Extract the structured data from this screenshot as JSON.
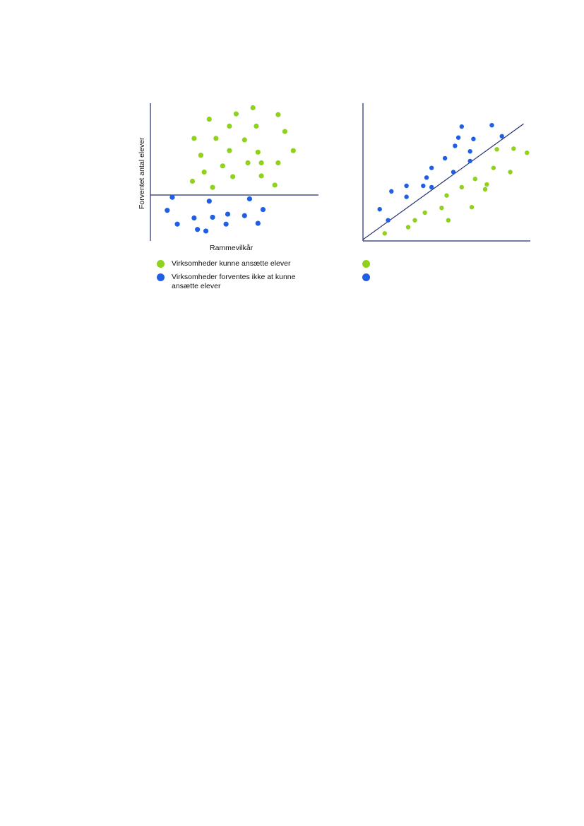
{
  "colors": {
    "green": "#8fd11b",
    "blue": "#1f5fe6",
    "axis": "#1f2d6e"
  },
  "chart_data": [
    {
      "type": "scatter",
      "title": "",
      "xlabel": "Rammevilkår",
      "ylabel": "Forventet antal elever",
      "xlim": [
        0,
        100
      ],
      "ylim": [
        -30,
        60
      ],
      "series": [
        {
          "name": "Virksomheder kunne ansætte elever",
          "color": "green",
          "points": [
            [
              35,
              49.5
            ],
            [
              51,
              53
            ],
            [
              61,
              57
            ],
            [
              76,
              52.5
            ],
            [
              47,
              45
            ],
            [
              63,
              45
            ],
            [
              80,
              41.5
            ],
            [
              26,
              37
            ],
            [
              39,
              37
            ],
            [
              56,
              36
            ],
            [
              47,
              29
            ],
            [
              64,
              28
            ],
            [
              85,
              29
            ],
            [
              30,
              26
            ],
            [
              66,
              21
            ],
            [
              76,
              21
            ],
            [
              43,
              19
            ],
            [
              58,
              21
            ],
            [
              32,
              15
            ],
            [
              49,
              12
            ],
            [
              66,
              12.5
            ],
            [
              25,
              9
            ],
            [
              74,
              6.5
            ],
            [
              37,
              5
            ]
          ]
        },
        {
          "name": "Virksomheder forventes ikke at kunne ansætte elever",
          "color": "blue",
          "points": [
            [
              13,
              -1.5
            ],
            [
              35,
              -4
            ],
            [
              59,
              -2.5
            ],
            [
              10,
              -10
            ],
            [
              67,
              -9.5
            ],
            [
              26,
              -15
            ],
            [
              37,
              -14.5
            ],
            [
              46,
              -12.5
            ],
            [
              56,
              -13.5
            ],
            [
              16,
              -19
            ],
            [
              28,
              -22.5
            ],
            [
              33,
              -23.5
            ],
            [
              45,
              -19
            ],
            [
              64,
              -18.5
            ]
          ]
        }
      ]
    },
    {
      "type": "scatter",
      "title": "",
      "xlabel": "",
      "ylabel": "",
      "xlim": [
        0,
        100
      ],
      "ylim": [
        0,
        100
      ],
      "trend_line": [
        [
          0,
          1
        ],
        [
          96,
          85
        ]
      ],
      "series": [
        {
          "name": "",
          "color": "green",
          "points": [
            [
              13,
              5.5
            ],
            [
              27,
              10
            ],
            [
              31,
              15
            ],
            [
              37,
              20.5
            ],
            [
              47,
              24
            ],
            [
              51,
              15
            ],
            [
              65,
              24.5
            ],
            [
              50,
              33
            ],
            [
              59,
              39
            ],
            [
              67,
              45
            ],
            [
              73,
              37.5
            ],
            [
              74,
              41
            ],
            [
              78,
              53
            ],
            [
              88,
              50
            ],
            [
              98,
              64
            ],
            [
              80,
              66.5
            ],
            [
              90,
              67
            ]
          ]
        },
        {
          "name": "",
          "color": "blue",
          "points": [
            [
              10,
              23
            ],
            [
              15,
              15
            ],
            [
              17,
              36
            ],
            [
              26,
              32
            ],
            [
              26,
              40
            ],
            [
              36,
              40
            ],
            [
              38,
              46
            ],
            [
              41,
              39
            ],
            [
              41,
              53
            ],
            [
              49,
              60
            ],
            [
              54,
              50
            ],
            [
              55,
              69
            ],
            [
              57,
              75
            ],
            [
              59,
              83
            ],
            [
              64,
              58
            ],
            [
              64,
              65
            ],
            [
              66,
              74
            ],
            [
              77,
              84
            ],
            [
              83,
              76
            ]
          ]
        }
      ]
    }
  ],
  "legend": [
    {
      "label": "Virksomheder kunne ansætte elever",
      "color": "green"
    },
    {
      "label": "Virksomheder forventes ikke at kunne ansætte elever",
      "color": "blue"
    }
  ]
}
